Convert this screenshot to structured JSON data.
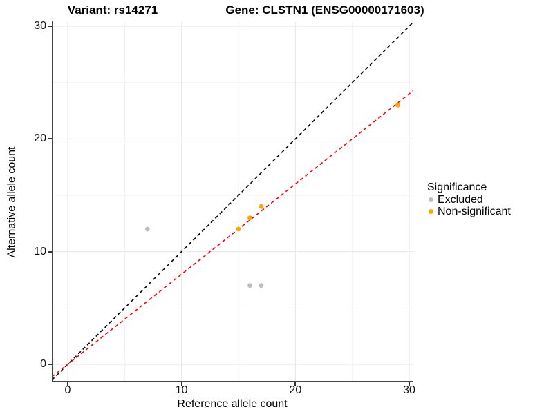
{
  "title": {
    "variant": "Variant: rs14271",
    "gene": "Gene: CLSTN1 (ENSG00000171603)"
  },
  "legend": {
    "title": "Significance"
  },
  "chart_data": {
    "type": "scatter",
    "title": "Variant: rs14271 / Gene: CLSTN1 (ENSG00000171603)",
    "xlabel": "Reference allele count",
    "ylabel": "Alternative allele count",
    "x_ticks": [
      0,
      10,
      20,
      30
    ],
    "y_ticks": [
      0,
      10,
      20,
      30
    ],
    "x_minor_ticks": [
      5,
      15,
      25
    ],
    "y_minor_ticks": [
      5,
      15,
      25
    ],
    "xlim": [
      -1.4,
      30.4
    ],
    "ylim": [
      -1.6,
      30.6
    ],
    "grid": true,
    "legend_position": "right",
    "legend_title": "Significance",
    "series": [
      {
        "name": "Excluded",
        "color": "#BEBEBE",
        "points": [
          [
            7,
            12
          ],
          [
            16,
            7
          ],
          [
            17,
            7
          ]
        ]
      },
      {
        "name": "Non-significant",
        "color": "#FFA500",
        "points": [
          [
            15,
            12
          ],
          [
            16,
            13
          ],
          [
            17,
            14
          ],
          [
            29,
            23
          ]
        ]
      }
    ],
    "reference_lines": [
      {
        "name": "identity-line",
        "color": "#000000",
        "style": "dashed",
        "slope": 1,
        "intercept": 0
      },
      {
        "name": "fit-line",
        "color": "#FF0000",
        "style": "dashed",
        "slope": 0.8,
        "intercept": 0
      }
    ]
  }
}
